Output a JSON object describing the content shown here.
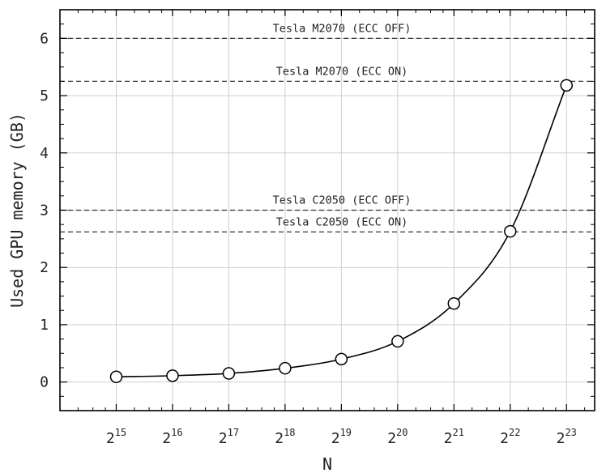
{
  "chart_data": {
    "type": "line",
    "xlabel": "N",
    "ylabel": "Used GPU memory (GB)",
    "x_scale": "log2",
    "x_ticks": [
      {
        "base": "2",
        "exp": "15"
      },
      {
        "base": "2",
        "exp": "16"
      },
      {
        "base": "2",
        "exp": "17"
      },
      {
        "base": "2",
        "exp": "18"
      },
      {
        "base": "2",
        "exp": "19"
      },
      {
        "base": "2",
        "exp": "20"
      },
      {
        "base": "2",
        "exp": "21"
      },
      {
        "base": "2",
        "exp": "22"
      },
      {
        "base": "2",
        "exp": "23"
      }
    ],
    "y_ticks": [
      "0",
      "1",
      "2",
      "3",
      "4",
      "5",
      "6"
    ],
    "xlim": [
      16384,
      11863283
    ],
    "ylim": [
      -0.5,
      6.5
    ],
    "grid": true,
    "series": [
      {
        "marker": "open-circle",
        "x": [
          32768,
          65536,
          131072,
          262144,
          524288,
          1048576,
          2097152,
          4194304,
          8388608
        ],
        "y": [
          0.09,
          0.11,
          0.15,
          0.24,
          0.4,
          0.71,
          1.37,
          2.63,
          5.18
        ]
      }
    ],
    "reference_lines": [
      {
        "label": "Tesla M2070 (ECC OFF)",
        "y": 6.0
      },
      {
        "label": "Tesla M2070 (ECC ON)",
        "y": 5.25
      },
      {
        "label": "Tesla C2050 (ECC OFF)",
        "y": 3.0
      },
      {
        "label": "Tesla C2050 (ECC ON)",
        "y": 2.62
      }
    ]
  }
}
